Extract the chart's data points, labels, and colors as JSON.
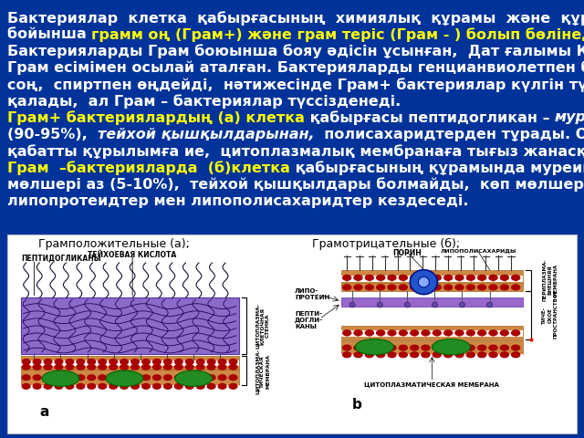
{
  "background_color": "#003399",
  "text_color_white": "#ffffff",
  "text_color_yellow": "#ffff00",
  "fontsize": 11.5,
  "diagram_bg": "#ffffff",
  "diagram_border_color": "#aaaaaa",
  "lines": [
    {
      "segments": [
        {
          "text": "Бактериялар  клетка  қабырғасының  химиялық  құрамы  және  құрылымы",
          "color": "white",
          "weight": "bold",
          "style": "normal"
        }
      ]
    },
    {
      "segments": [
        {
          "text": "бойынша ",
          "color": "white",
          "weight": "bold",
          "style": "normal"
        },
        {
          "text": "грамм оң (Грам+) және грам теріс (Грам - ) болып бөлінеді",
          "color": "yellow",
          "weight": "bold",
          "style": "normal"
        },
        {
          "text": ".",
          "color": "white",
          "weight": "bold",
          "style": "normal"
        }
      ]
    },
    {
      "segments": [
        {
          "text": "Бактерияларды Грам боюынша бояу әдісін ұсынған,  Дат ғалымы Кристиан",
          "color": "white",
          "weight": "bold",
          "style": "normal"
        }
      ]
    },
    {
      "segments": [
        {
          "text": "Грам есімімен осылай аталған. Бактерияларды генцианвиолетпен бояған",
          "color": "white",
          "weight": "bold",
          "style": "normal"
        }
      ]
    },
    {
      "segments": [
        {
          "text": "соң,  спиртпен өңдейді,  нәтижесінде Грам+ бактериялар күлгін түсін сақтап",
          "color": "white",
          "weight": "bold",
          "style": "normal"
        }
      ]
    },
    {
      "segments": [
        {
          "text": "қалады,  ал Грам – бактериялар түссізденеді.",
          "color": "white",
          "weight": "bold",
          "style": "normal"
        }
      ]
    },
    {
      "segments": [
        {
          "text": "Грам+ бактериялардың (a) клетка",
          "color": "yellow",
          "weight": "bold",
          "style": "normal"
        },
        {
          "text": " қабырғасы пептидогликан – ",
          "color": "white",
          "weight": "bold",
          "style": "normal"
        },
        {
          "text": "муреиннен",
          "color": "white",
          "weight": "bold",
          "style": "italic"
        }
      ]
    },
    {
      "segments": [
        {
          "text": "(90-95%),  ",
          "color": "white",
          "weight": "bold",
          "style": "normal"
        },
        {
          "text": "тейхой қышқылдарынан,",
          "color": "white",
          "weight": "bold",
          "style": "italic"
        },
        {
          "text": "  полисахаридтерден тұрады. Ол бір",
          "color": "white",
          "weight": "bold",
          "style": "normal"
        }
      ]
    },
    {
      "segments": [
        {
          "text": "қабатты құрылымға ие,  цитоплазмалық мембранаға тығыз жанасқан.",
          "color": "white",
          "weight": "bold",
          "style": "normal"
        }
      ]
    },
    {
      "segments": [
        {
          "text": "Грам  –бактерияларда  (б)клетка",
          "color": "yellow",
          "weight": "bold",
          "style": "normal"
        },
        {
          "text": " қабырғасының құрамында муреин",
          "color": "white",
          "weight": "bold",
          "style": "normal"
        }
      ]
    },
    {
      "segments": [
        {
          "text": "мөлшері аз (5-10%),  тейхой қышқылдары болмайды,  көп мөлшерде",
          "color": "white",
          "weight": "bold",
          "style": "normal"
        }
      ]
    },
    {
      "segments": [
        {
          "text": "липопротеидтер мен липополисахаридтер кездеседі.",
          "color": "white",
          "weight": "bold",
          "style": "normal"
        }
      ]
    }
  ]
}
